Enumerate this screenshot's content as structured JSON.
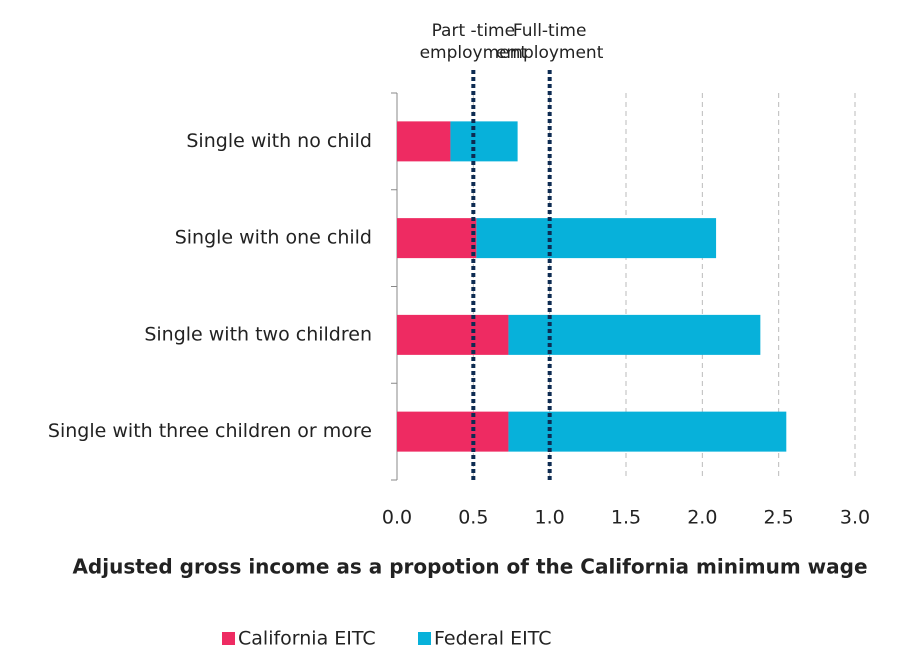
{
  "chart_data": {
    "type": "stacked-bar-horizontal",
    "x_label": "Adjusted gross income as a propotion of the California minimum wage",
    "categories": [
      "Single with no child",
      "Single with one child",
      "Single with two children",
      "Single with three children or more"
    ],
    "series": [
      {
        "name": "California EITC",
        "color": "#ee2b62",
        "values": [
          0.35,
          0.52,
          0.73,
          0.73
        ]
      },
      {
        "name": "Federal EITC",
        "color": "#07b1da",
        "values": [
          0.44,
          1.57,
          1.65,
          1.82
        ]
      }
    ],
    "xlim": [
      0,
      3
    ],
    "xticks": [
      {
        "value": 0,
        "label": "0.0"
      },
      {
        "value": 0.5,
        "label": "0.5"
      },
      {
        "value": 1,
        "label": "1.0"
      },
      {
        "value": 1.5,
        "label": "1.5"
      },
      {
        "value": 2,
        "label": "2.0"
      },
      {
        "value": 2.5,
        "label": "2.5"
      },
      {
        "value": 3,
        "label": "3.0"
      }
    ],
    "grid": true,
    "reference_lines": [
      {
        "value": 0.5,
        "label": [
          "Part -time",
          "employment"
        ],
        "color": "#0d2b52"
      },
      {
        "value": 1,
        "label": [
          "Full-time",
          "employment"
        ],
        "color": "#0d2b52"
      }
    ],
    "legend": "bottom"
  }
}
